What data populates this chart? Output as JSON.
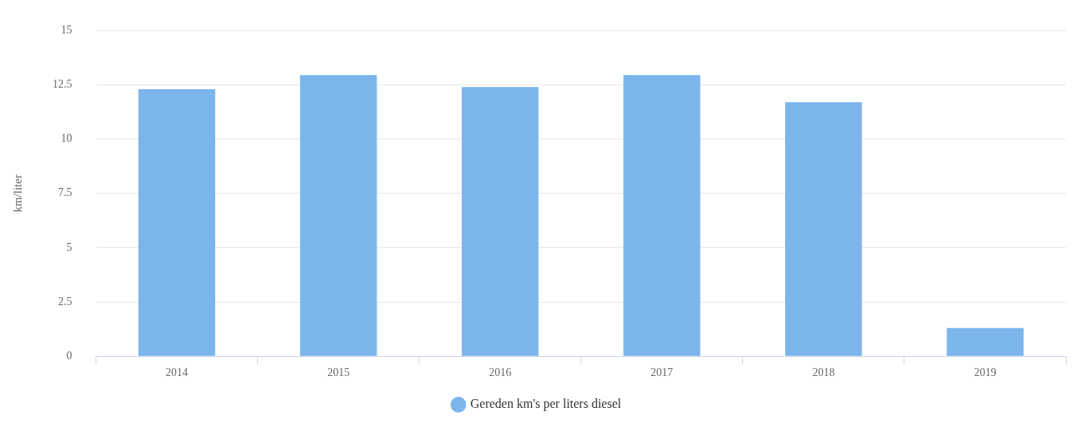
{
  "chart_data": {
    "type": "bar",
    "ylabel": "km/liter",
    "categories": [
      "2014",
      "2015",
      "2016",
      "2017",
      "2018",
      "2019"
    ],
    "series": [
      {
        "name": "Gereden km's per liters diesel",
        "color": "#7cb5ec",
        "values": [
          12.3,
          12.95,
          12.4,
          12.95,
          11.7,
          1.3
        ]
      }
    ],
    "ylim": [
      0,
      15
    ],
    "yticks": [
      0,
      2.5,
      5,
      7.5,
      10,
      12.5,
      15
    ],
    "grid": "y",
    "legend": "bottom"
  }
}
